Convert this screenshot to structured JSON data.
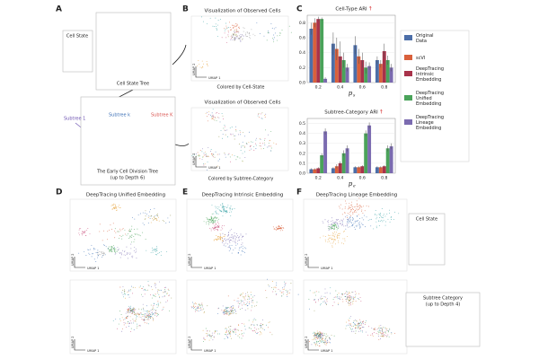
{
  "panels": {
    "a": "A",
    "b": "B",
    "c": "C",
    "d": "D",
    "e": "E",
    "f": "F"
  },
  "panel_a": {
    "cell_state": "Cell State",
    "tree_label": "Cell State Tree",
    "subtree_1": "Subtree 1",
    "subtree_k": "Subtree k",
    "subtree_K": "Subtree K",
    "division_tree": "The Early Cell Division Tree",
    "division_depth": "(up to Depth 6)"
  },
  "panel_b": {
    "title_top": "Visualization of Observed Cells",
    "caption_top": "Colored by Cell-State",
    "title_bottom": "Visualization of Observed Cells",
    "caption_bottom": "Colored by Subtree-Category"
  },
  "umap_x": "UMAP 1",
  "umap_y": "UMAP 2",
  "panel_d": {
    "title": "DeepTracing Unified Embedding"
  },
  "panel_e": {
    "title": "DeepTracing Intrinsic Embedding"
  },
  "panel_f": {
    "title": "DeepTracing Lineage Embedding"
  },
  "legend_cell_state": {
    "title": "Cell State"
  },
  "legend_subtree": {
    "title": "Subtree Category",
    "subtitle": "(up to Depth 4)"
  },
  "chart_data": [
    {
      "type": "bar",
      "title": "Cell-Type ARI",
      "title_arrow": "↑",
      "xlabel": "p",
      "xlabel_subscript": "s",
      "categories": [
        "0.2",
        "0.4",
        "0.6",
        "0.8"
      ],
      "ylim": [
        0,
        0.9
      ],
      "yticks": [
        {
          "value": 0,
          "label": "0.0"
        },
        0.2,
        0.4,
        0.6,
        0.8
      ],
      "grid": true,
      "series": [
        {
          "name": "Original Data",
          "color": "#4c6ea8",
          "values": [
            0.72,
            0.52,
            0.5,
            0.3
          ],
          "errors": [
            0.08,
            0.15,
            0.12,
            0.05
          ]
        },
        {
          "name": "scVI",
          "color": "#d9603b",
          "values": [
            0.8,
            0.45,
            0.35,
            0.25
          ],
          "errors": [
            0.06,
            0.15,
            0.1,
            0.05
          ]
        },
        {
          "name": "DeepTracing Intrinsic Embedding",
          "color": "#a8324a",
          "values": [
            0.85,
            0.35,
            0.3,
            0.42
          ],
          "errors": [
            0.03,
            0.2,
            0.1,
            0.1
          ]
        },
        {
          "name": "DeepTracing Unified Embedding",
          "color": "#4aa35a",
          "values": [
            0.85,
            0.3,
            0.2,
            0.3
          ],
          "errors": [
            0.02,
            0.1,
            0.08,
            0.06
          ]
        },
        {
          "name": "DeepTracing Lineage Embedding",
          "color": "#7b6bb0",
          "values": [
            0.05,
            0.2,
            0.22,
            0.2
          ],
          "errors": [
            0.02,
            0.05,
            0.05,
            0.05
          ]
        }
      ]
    },
    {
      "type": "bar",
      "title": "Subtree-Category ARI",
      "title_arrow": "↑",
      "xlabel": "p",
      "xlabel_subscript": "e",
      "categories": [
        "0.2",
        "0.4",
        "0.6",
        "0.8"
      ],
      "ylim": [
        0,
        0.55
      ],
      "yticks": [
        {
          "value": 0,
          "label": "0.0"
        },
        0.1,
        0.2,
        0.3,
        0.4,
        0.5
      ],
      "grid": true,
      "series": [
        {
          "color": "#4c6ea8",
          "values": [
            0.04,
            0.05,
            0.06,
            0.06
          ],
          "errors": [
            0.01,
            0.01,
            0.01,
            0.01
          ]
        },
        {
          "color": "#d9603b",
          "values": [
            0.04,
            0.07,
            0.06,
            0.06
          ],
          "errors": [
            0.01,
            0.02,
            0.01,
            0.01
          ]
        },
        {
          "color": "#a8324a",
          "values": [
            0.05,
            0.1,
            0.07,
            0.07
          ],
          "errors": [
            0.01,
            0.02,
            0.01,
            0.01
          ]
        },
        {
          "color": "#4aa35a",
          "values": [
            0.18,
            0.2,
            0.4,
            0.25
          ],
          "errors": [
            0.02,
            0.03,
            0.03,
            0.03
          ]
        },
        {
          "color": "#7b6bb0",
          "values": [
            0.42,
            0.25,
            0.48,
            0.27
          ],
          "errors": [
            0.03,
            0.03,
            0.03,
            0.03
          ]
        }
      ]
    }
  ]
}
